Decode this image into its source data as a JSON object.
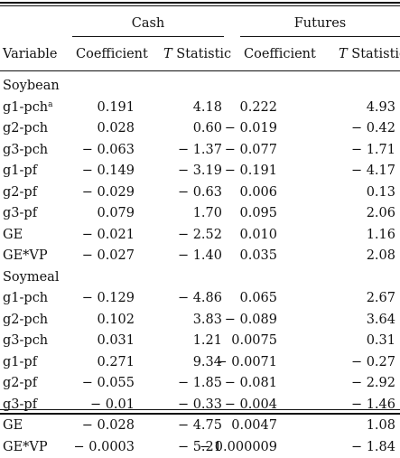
{
  "header": {
    "group_cash": "Cash",
    "group_futures": "Futures",
    "col_variable": "Variable",
    "col_cash_coef": "Coefficient",
    "col_cash_t_italic": "T",
    "col_cash_t_rest": " Statistic",
    "col_fut_coef": "Coefficient",
    "col_fut_t_italic": "T",
    "col_fut_t_rest": " Statistic"
  },
  "sections": [
    {
      "title": "Soybean",
      "rows": [
        {
          "label": "g1-pch",
          "note": "a",
          "cash_coef": "0.191",
          "cash_t": "4.18",
          "fut_coef": "0.222",
          "fut_t": "4.93"
        },
        {
          "label": "g2-pch",
          "note": "",
          "cash_coef": "0.028",
          "cash_t": "0.60",
          "fut_coef": "− 0.019",
          "fut_t": "− 0.42"
        },
        {
          "label": "g3-pch",
          "note": "",
          "cash_coef": "− 0.063",
          "cash_t": "− 1.37",
          "fut_coef": "− 0.077",
          "fut_t": "− 1.71"
        },
        {
          "label": "g1-pf",
          "note": "",
          "cash_coef": "− 0.149",
          "cash_t": "− 3.19",
          "fut_coef": "− 0.191",
          "fut_t": "− 4.17"
        },
        {
          "label": "g2-pf",
          "note": "",
          "cash_coef": "− 0.029",
          "cash_t": "− 0.63",
          "fut_coef": "0.006",
          "fut_t": "0.13"
        },
        {
          "label": "g3-pf",
          "note": "",
          "cash_coef": "0.079",
          "cash_t": "1.70",
          "fut_coef": "0.095",
          "fut_t": "2.06"
        },
        {
          "label": "GE",
          "note": "",
          "cash_coef": "− 0.021",
          "cash_t": "− 2.52",
          "fut_coef": "0.010",
          "fut_t": "1.16"
        },
        {
          "label": "GE*VP",
          "note": "",
          "cash_coef": "− 0.027",
          "cash_t": "− 1.40",
          "fut_coef": "0.035",
          "fut_t": "2.08"
        }
      ]
    },
    {
      "title": "Soymeal",
      "rows": [
        {
          "label": "g1-pch",
          "note": "",
          "cash_coef": "− 0.129",
          "cash_t": "− 4.86",
          "fut_coef": "0.065",
          "fut_t": "2.67"
        },
        {
          "label": "g2-pch",
          "note": "",
          "cash_coef": "0.102",
          "cash_t": "3.83",
          "fut_coef": "− 0.089",
          "fut_t": "3.64"
        },
        {
          "label": "g3-pch",
          "note": "",
          "cash_coef": "0.031",
          "cash_t": "1.21",
          "fut_coef": "0.0075",
          "fut_t": "0.31"
        },
        {
          "label": "g1-pf",
          "note": "",
          "cash_coef": "0.271",
          "cash_t": "9.34",
          "fut_coef": "− 0.0071",
          "fut_t": "− 0.27"
        },
        {
          "label": "g2-pf",
          "note": "",
          "cash_coef": "− 0.055",
          "cash_t": "− 1.85",
          "fut_coef": "− 0.081",
          "fut_t": "− 2.92"
        },
        {
          "label": "g3-pf",
          "note": "",
          "cash_coef": "− 0.01",
          "cash_t": "− 0.33",
          "fut_coef": "− 0.004",
          "fut_t": "− 1.46"
        },
        {
          "label": "GE",
          "note": "",
          "cash_coef": "− 0.028",
          "cash_t": "− 4.75",
          "fut_coef": "0.0047",
          "fut_t": "1.08"
        },
        {
          "label": "GE*VP",
          "note": "",
          "cash_coef": "− 0.0003",
          "cash_t": "− 5.21",
          "fut_coef": "− 0.000009",
          "fut_t": "− 1.84"
        }
      ]
    }
  ]
}
